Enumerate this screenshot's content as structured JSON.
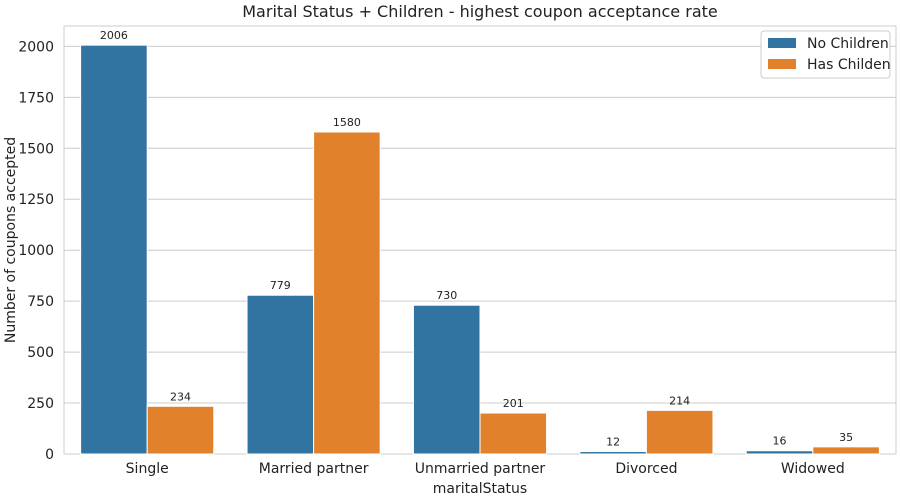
{
  "chart_data": {
    "type": "bar",
    "title": "Marital Status + Children - highest coupon acceptance rate",
    "xlabel": "maritalStatus",
    "ylabel": "Number of coupons accepted",
    "categories": [
      "Single",
      "Married partner",
      "Unmarried partner",
      "Divorced",
      "Widowed"
    ],
    "series": [
      {
        "name": "No Children",
        "color": "#3274a1",
        "values": [
          2006,
          779,
          730,
          12,
          16
        ]
      },
      {
        "name": "Has Childen",
        "color": "#e1812c",
        "values": [
          234,
          1580,
          201,
          214,
          35
        ]
      }
    ],
    "ylim": [
      0,
      2100
    ],
    "yticks": [
      0,
      250,
      500,
      750,
      1000,
      1250,
      1500,
      1750,
      2000
    ],
    "grid": true,
    "legend": "top-right"
  }
}
